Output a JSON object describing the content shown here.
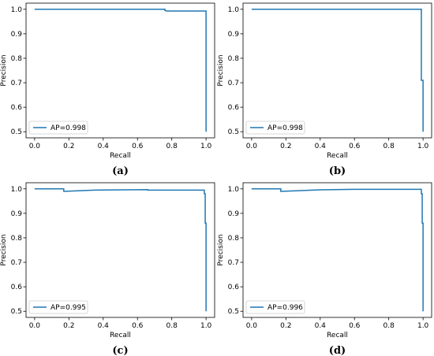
{
  "chart_data": [
    {
      "type": "line",
      "caption": "(a)",
      "xlabel": "Recall",
      "ylabel": "Precision",
      "xlim": [
        -0.05,
        1.05
      ],
      "ylim": [
        0.475,
        1.025
      ],
      "xticks": [
        "0.0",
        "0.2",
        "0.4",
        "0.6",
        "0.8",
        "1.0"
      ],
      "yticks": [
        "0.5",
        "0.6",
        "0.7",
        "0.8",
        "0.9",
        "1.0"
      ],
      "legend_position": "bottom-left",
      "grid": false,
      "color": "#1f77b4",
      "series": [
        {
          "name": "AP=0.998",
          "x": [
            0.0,
            0.76,
            0.76,
            0.77,
            0.77,
            1.0,
            1.0
          ],
          "y": [
            1.0,
            1.0,
            0.995,
            0.993,
            0.993,
            0.993,
            0.5
          ]
        }
      ]
    },
    {
      "type": "line",
      "caption": "(b)",
      "xlabel": "Recall",
      "ylabel": "Precision",
      "xlim": [
        -0.05,
        1.05
      ],
      "ylim": [
        0.475,
        1.025
      ],
      "xticks": [
        "0.0",
        "0.2",
        "0.4",
        "0.6",
        "0.8",
        "1.0"
      ],
      "yticks": [
        "0.5",
        "0.6",
        "0.7",
        "0.8",
        "0.9",
        "1.0"
      ],
      "legend_position": "bottom-left",
      "grid": false,
      "color": "#1f77b4",
      "series": [
        {
          "name": "AP=0.998",
          "x": [
            0.0,
            0.99,
            0.99,
            0.995,
            0.995,
            1.0,
            1.0
          ],
          "y": [
            1.0,
            1.0,
            0.71,
            0.71,
            0.71,
            0.71,
            0.5
          ]
        }
      ]
    },
    {
      "type": "line",
      "caption": "(c)",
      "xlabel": "Recall",
      "ylabel": "Precision",
      "xlim": [
        -0.05,
        1.05
      ],
      "ylim": [
        0.475,
        1.025
      ],
      "xticks": [
        "0.0",
        "0.2",
        "0.4",
        "0.6",
        "0.8",
        "1.0"
      ],
      "yticks": [
        "0.5",
        "0.6",
        "0.7",
        "0.8",
        "0.9",
        "1.0"
      ],
      "legend_position": "bottom-left",
      "grid": false,
      "color": "#1f77b4",
      "series": [
        {
          "name": "AP=0.995",
          "x": [
            0.0,
            0.17,
            0.17,
            0.18,
            0.35,
            0.66,
            0.66,
            0.99,
            0.99,
            0.995,
            0.995,
            1.0,
            1.0
          ],
          "y": [
            1.0,
            1.0,
            0.99,
            0.99,
            0.995,
            0.997,
            0.995,
            0.995,
            0.98,
            0.98,
            0.86,
            0.86,
            0.5
          ]
        }
      ]
    },
    {
      "type": "line",
      "caption": "(d)",
      "xlabel": "Recall",
      "ylabel": "Precision",
      "xlim": [
        -0.05,
        1.05
      ],
      "ylim": [
        0.475,
        1.025
      ],
      "xticks": [
        "0.0",
        "0.2",
        "0.4",
        "0.6",
        "0.8",
        "1.0"
      ],
      "yticks": [
        "0.5",
        "0.6",
        "0.7",
        "0.8",
        "0.9",
        "1.0"
      ],
      "legend_position": "bottom-left",
      "grid": false,
      "color": "#1f77b4",
      "series": [
        {
          "name": "AP=0.996",
          "x": [
            0.0,
            0.17,
            0.17,
            0.18,
            0.4,
            0.6,
            0.99,
            0.99,
            0.995,
            0.995,
            1.0,
            1.0
          ],
          "y": [
            1.0,
            1.0,
            0.99,
            0.99,
            0.996,
            0.998,
            0.998,
            0.98,
            0.98,
            0.86,
            0.86,
            0.5
          ]
        }
      ]
    }
  ]
}
